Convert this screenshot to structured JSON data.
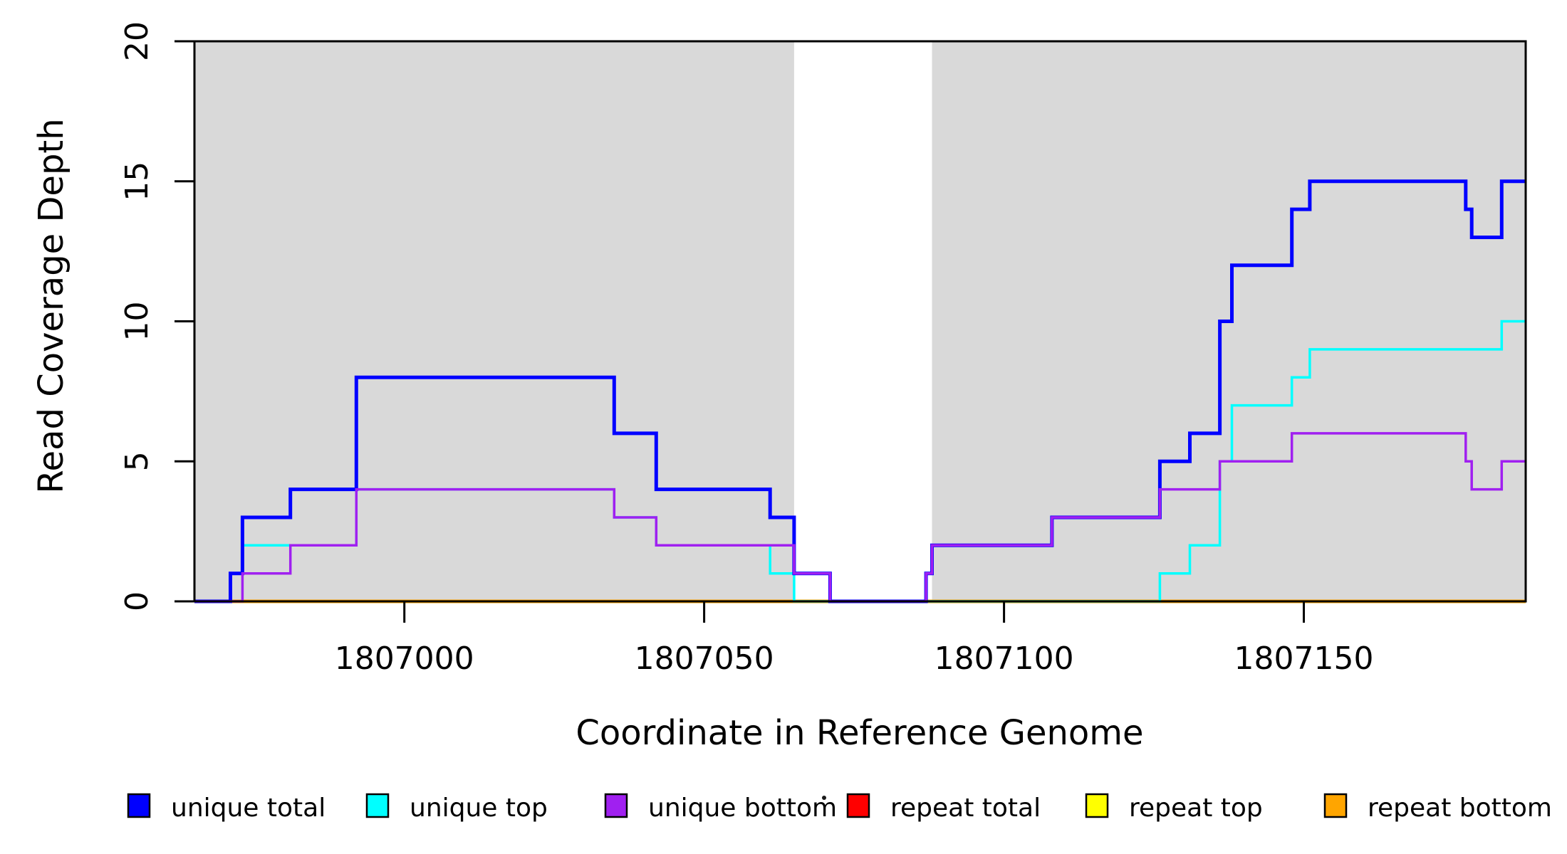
{
  "chart_data": {
    "type": "line",
    "subtype": "step-coverage",
    "title": "",
    "xlabel": "Coordinate in Reference Genome",
    "ylabel": "Read Coverage Depth",
    "xlim": [
      1806965,
      1807187
    ],
    "ylim": [
      0,
      20
    ],
    "grid": false,
    "legend_position": "bottom",
    "xticks": [
      {
        "value": 1807000,
        "label": "1807000"
      },
      {
        "value": 1807050,
        "label": "1807050"
      },
      {
        "value": 1807100,
        "label": "1807100"
      },
      {
        "value": 1807150,
        "label": "1807150"
      }
    ],
    "yticks": [
      {
        "value": 0,
        "label": "0"
      },
      {
        "value": 5,
        "label": "5"
      },
      {
        "value": 10,
        "label": "10"
      },
      {
        "value": 15,
        "label": "15"
      },
      {
        "value": 20,
        "label": "20"
      }
    ],
    "shaded_regions": [
      {
        "x0": 1806965,
        "x1": 1807065,
        "color": "#D9D9D9"
      },
      {
        "x0": 1807088,
        "x1": 1807187,
        "color": "#D9D9D9"
      }
    ],
    "series": [
      {
        "name": "unique total",
        "color": "#0000FF",
        "width": 5,
        "z": 5,
        "steps": [
          [
            1806965,
            0
          ],
          [
            1806971,
            1
          ],
          [
            1806973,
            3
          ],
          [
            1806981,
            4
          ],
          [
            1806992,
            8
          ],
          [
            1807035,
            6
          ],
          [
            1807042,
            4
          ],
          [
            1807061,
            3
          ],
          [
            1807065,
            1
          ],
          [
            1807071,
            0
          ],
          [
            1807087,
            1
          ],
          [
            1807088,
            2
          ],
          [
            1807108,
            3
          ],
          [
            1807126,
            5
          ],
          [
            1807131,
            6
          ],
          [
            1807136,
            10
          ],
          [
            1807138,
            12
          ],
          [
            1807148,
            14
          ],
          [
            1807151,
            15
          ],
          [
            1807177,
            14
          ],
          [
            1807178,
            13
          ],
          [
            1807183,
            15
          ]
        ]
      },
      {
        "name": "unique top",
        "color": "#00FFFF",
        "width": 3.5,
        "z": 4,
        "steps": [
          [
            1806965,
            0
          ],
          [
            1806971,
            1
          ],
          [
            1806973,
            2
          ],
          [
            1806992,
            4
          ],
          [
            1807035,
            3
          ],
          [
            1807042,
            2
          ],
          [
            1807061,
            1
          ],
          [
            1807065,
            0
          ],
          [
            1807126,
            1
          ],
          [
            1807131,
            2
          ],
          [
            1807136,
            5
          ],
          [
            1807138,
            7
          ],
          [
            1807148,
            8
          ],
          [
            1807151,
            9
          ],
          [
            1807183,
            10
          ]
        ]
      },
      {
        "name": "unique bottom",
        "color": "#A020F0",
        "width": 3.5,
        "z": 6,
        "steps": [
          [
            1806965,
            0
          ],
          [
            1806973,
            1
          ],
          [
            1806981,
            2
          ],
          [
            1806992,
            4
          ],
          [
            1807035,
            3
          ],
          [
            1807042,
            2
          ],
          [
            1807065,
            1
          ],
          [
            1807071,
            0
          ],
          [
            1807087,
            1
          ],
          [
            1807088,
            2
          ],
          [
            1807108,
            3
          ],
          [
            1807126,
            4
          ],
          [
            1807136,
            5
          ],
          [
            1807148,
            6
          ],
          [
            1807177,
            5
          ],
          [
            1807178,
            4
          ],
          [
            1807183,
            5
          ]
        ]
      },
      {
        "name": "repeat total",
        "color": "#FF0000",
        "width": 3.5,
        "z": 1,
        "steps": [
          [
            1806965,
            0
          ]
        ]
      },
      {
        "name": "repeat top",
        "color": "#FFFF00",
        "width": 3.5,
        "z": 2,
        "steps": [
          [
            1806965,
            0
          ]
        ]
      },
      {
        "name": "repeat bottom",
        "color": "#FFA500",
        "width": 5,
        "z": 3,
        "steps": [
          [
            1806965,
            0
          ]
        ]
      }
    ]
  },
  "legend": {
    "items": [
      {
        "label": "unique total",
        "color": "#0000FF"
      },
      {
        "label": "unique top",
        "color": "#00FFFF"
      },
      {
        "label": "unique bottom",
        "color": "#A020F0"
      },
      {
        "label": "repeat total",
        "color": "#FF0000"
      },
      {
        "label": "repeat top",
        "color": "#FFFF00"
      },
      {
        "label": "repeat bottom",
        "color": "#FFA500"
      }
    ]
  }
}
